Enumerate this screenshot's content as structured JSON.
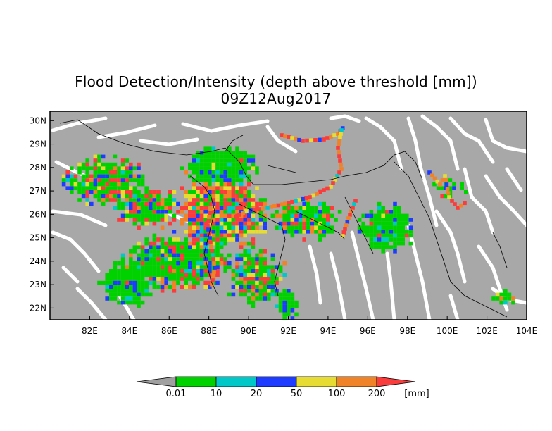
{
  "title_line1": "Flood Detection/Intensity (depth above threshold [mm])",
  "title_line2": "09Z12Aug2017",
  "map": {
    "lon_range": [
      80,
      104
    ],
    "lat_range": [
      21.5,
      30.4
    ],
    "lon_ticks": [
      "82E",
      "84E",
      "86E",
      "88E",
      "90E",
      "92E",
      "94E",
      "96E",
      "98E",
      "100E",
      "102E",
      "104E"
    ],
    "lon_tick_values": [
      82,
      84,
      86,
      88,
      90,
      92,
      94,
      96,
      98,
      100,
      102,
      104
    ],
    "lat_ticks": [
      "30N",
      "29N",
      "28N",
      "27N",
      "26N",
      "25N",
      "24N",
      "23N",
      "22N"
    ],
    "lat_tick_values": [
      30,
      29,
      28,
      27,
      26,
      25,
      24,
      23,
      22
    ],
    "background_color": "#a8a8a8",
    "river_color": "#ffffff"
  },
  "colorbar": {
    "labels": [
      "0.01",
      "10",
      "20",
      "50",
      "100",
      "200"
    ],
    "unit": "[mm]",
    "colors": [
      "#a0a0a0",
      "#00d200",
      "#00c8c8",
      "#1e3cff",
      "#e6dc32",
      "#f08228",
      "#fa3c3c"
    ]
  }
}
